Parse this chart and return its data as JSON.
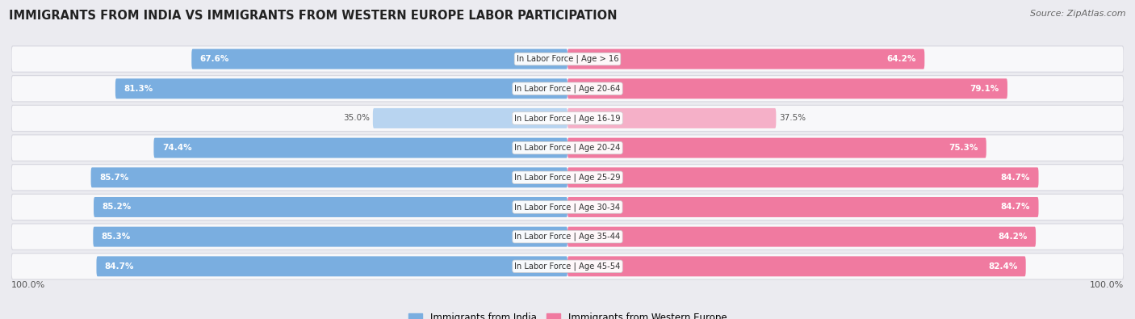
{
  "title": "IMMIGRANTS FROM INDIA VS IMMIGRANTS FROM WESTERN EUROPE LABOR PARTICIPATION",
  "source": "Source: ZipAtlas.com",
  "categories": [
    "In Labor Force | Age > 16",
    "In Labor Force | Age 20-64",
    "In Labor Force | Age 16-19",
    "In Labor Force | Age 20-24",
    "In Labor Force | Age 25-29",
    "In Labor Force | Age 30-34",
    "In Labor Force | Age 35-44",
    "In Labor Force | Age 45-54"
  ],
  "india_values": [
    67.6,
    81.3,
    35.0,
    74.4,
    85.7,
    85.2,
    85.3,
    84.7
  ],
  "europe_values": [
    64.2,
    79.1,
    37.5,
    75.3,
    84.7,
    84.7,
    84.2,
    82.4
  ],
  "india_color_full": "#7aaee0",
  "india_color_light": "#b8d4f0",
  "europe_color_full": "#f07aa0",
  "europe_color_light": "#f5b0c8",
  "legend_india": "Immigrants from India",
  "legend_europe": "Immigrants from Western Europe",
  "bg_color": "#ebebf0",
  "row_bg": "#f8f8fa",
  "row_border": "#d8d8e0"
}
